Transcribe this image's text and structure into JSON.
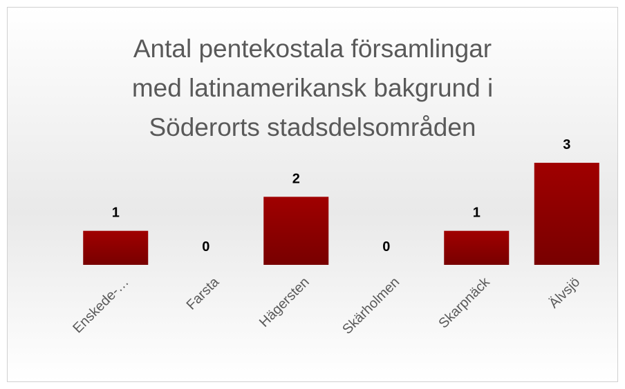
{
  "chart_data": {
    "type": "bar",
    "title": [
      "Antal pentekostala församlingar",
      "med latinamerikansk bakgrund i",
      "Söderorts stadsdelsområden"
    ],
    "categories": [
      "Enskede-…",
      "Farsta",
      "Hägersten",
      "Skärholmen",
      "Skarpnäck",
      "Älvsjö"
    ],
    "values": [
      1,
      0,
      2,
      0,
      1,
      3
    ],
    "color": "#990000"
  }
}
